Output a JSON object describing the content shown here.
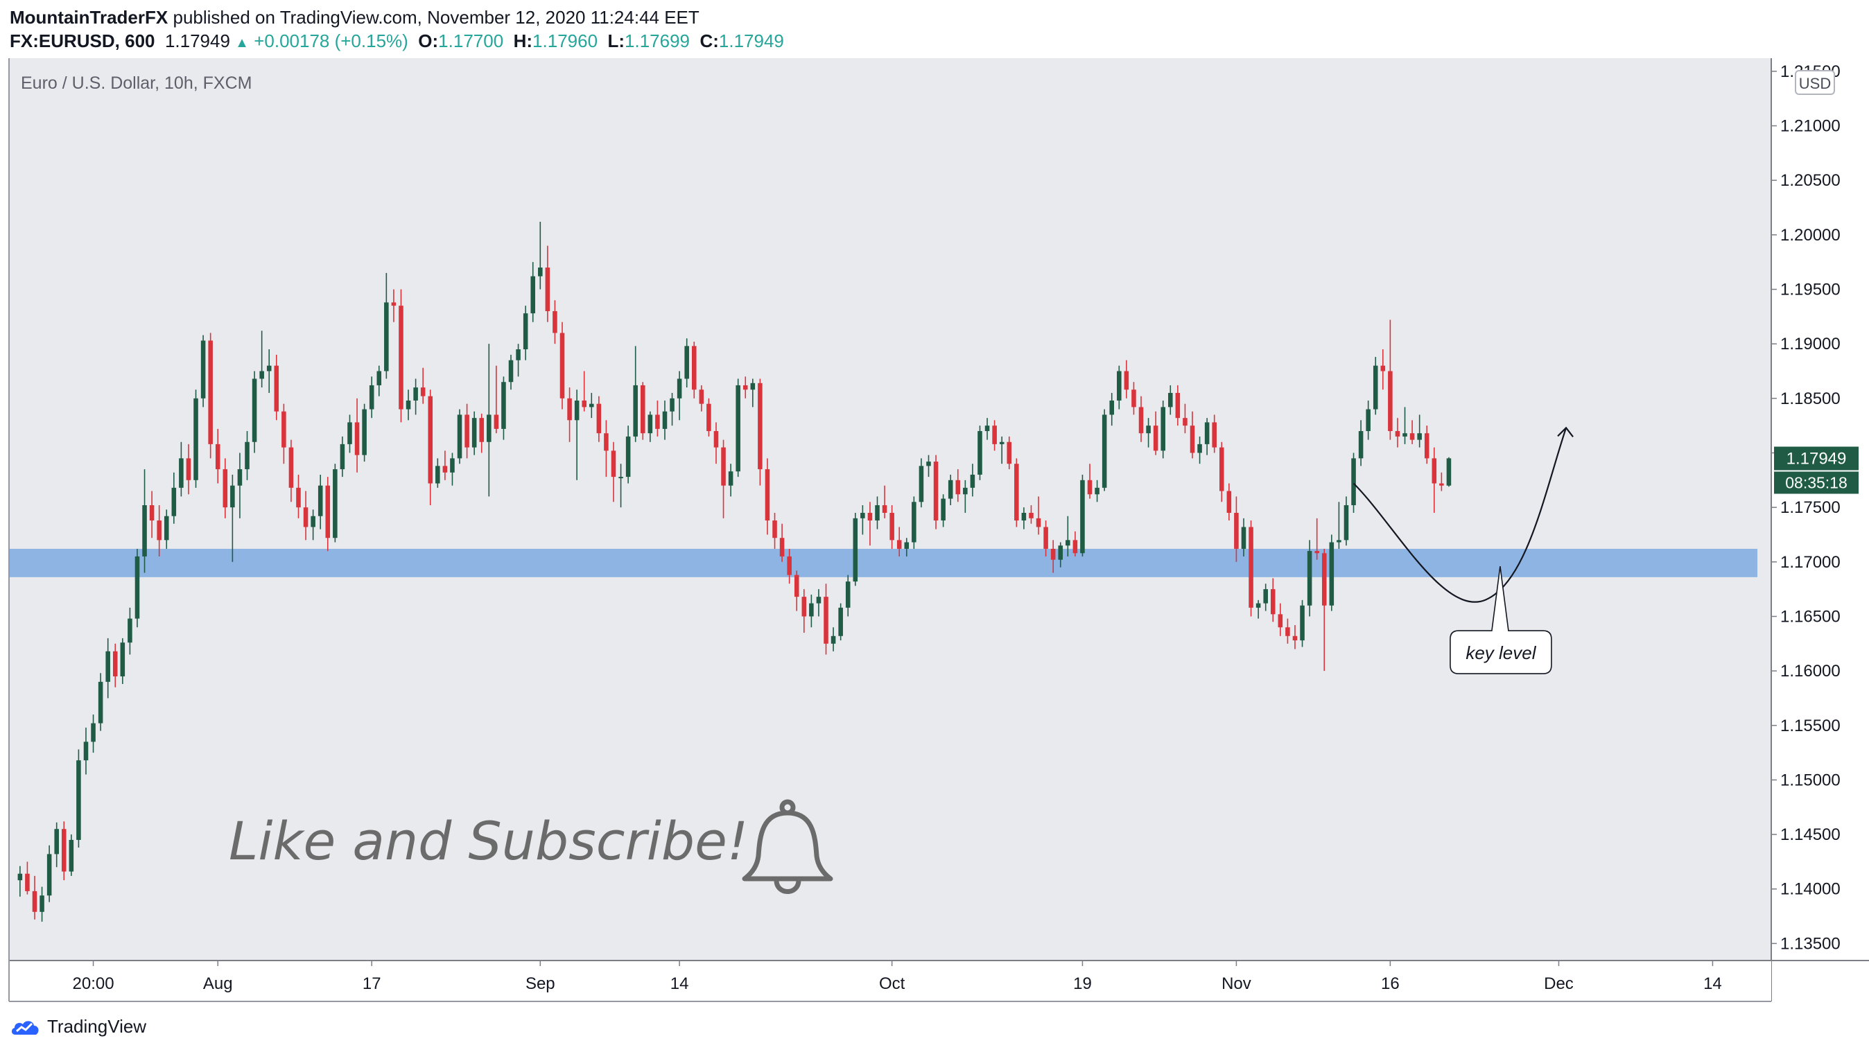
{
  "header": {
    "author": "MountainTraderFX",
    "published_text": "published on TradingView.com, November 12, 2020 11:24:44 EET",
    "symbol": "FX:EURUSD, 600",
    "last": "1.17949",
    "change": "+0.00178 (+0.15%)",
    "open_label": "O:",
    "open": "1.17700",
    "high_label": "H:",
    "high": "1.17960",
    "low_label": "L:",
    "low": "1.17699",
    "close_label": "C:",
    "close": "1.17949"
  },
  "colors": {
    "bull": "#26a69a",
    "bear": "#ef5350",
    "bull_candle": "#1f5b45",
    "bear_candle": "#d9343c",
    "plot_bg": "#e9eaed",
    "zone": "#8db4e2",
    "price_tag": "#1f5b45",
    "text_dark": "#131722",
    "watermark": "#6b6b6b"
  },
  "footer": {
    "brand": "TradingView"
  },
  "chart_data": {
    "type": "candlestick",
    "title": "Euro / U.S. Dollar, 10h, FXCM",
    "currency": "USD",
    "ylim": [
      1.1335,
      1.2162
    ],
    "y_ticks": [
      "1.21500",
      "1.21000",
      "1.20500",
      "1.20000",
      "1.19500",
      "1.19000",
      "1.18500",
      "1.18000",
      "1.17500",
      "1.17000",
      "1.16500",
      "1.16000",
      "1.15500",
      "1.15000",
      "1.14500",
      "1.14000",
      "1.13500"
    ],
    "x_ticks": [
      {
        "label": "20:00",
        "index": 10
      },
      {
        "label": "Aug",
        "index": 27
      },
      {
        "label": "17",
        "index": 48
      },
      {
        "label": "Sep",
        "index": 71
      },
      {
        "label": "14",
        "index": 90
      },
      {
        "label": "Oct",
        "index": 119
      },
      {
        "label": "19",
        "index": 145
      },
      {
        "label": "Nov",
        "index": 166
      },
      {
        "label": "16",
        "index": 187
      },
      {
        "label": "Dec",
        "index": 210
      },
      {
        "label": "14",
        "index": 231
      }
    ],
    "x_index_range": [
      -1.5,
      239
    ],
    "last_price": "1.17949",
    "countdown": "08:35:18",
    "key_zone": [
      1.1686,
      1.1712
    ],
    "annotation": {
      "text": "key level",
      "point": [
        202,
        1.1696
      ]
    },
    "projection": {
      "from": [
        182,
        1.1772
      ],
      "control": [
        200,
        1.1662
      ],
      "to": [
        211,
        1.1823
      ]
    },
    "watermark_text": "Like and Subscribe!",
    "ohlc": [
      [
        1.1408,
        1.1421,
        1.1393,
        1.1414
      ],
      [
        1.1414,
        1.1425,
        1.1395,
        1.1398
      ],
      [
        1.1398,
        1.1412,
        1.1372,
        1.1379
      ],
      [
        1.1379,
        1.1402,
        1.137,
        1.1394
      ],
      [
        1.1394,
        1.144,
        1.1388,
        1.1432
      ],
      [
        1.1432,
        1.1461,
        1.142,
        1.1455
      ],
      [
        1.1455,
        1.1462,
        1.1408,
        1.1416
      ],
      [
        1.1416,
        1.145,
        1.1412,
        1.1445
      ],
      [
        1.1445,
        1.1528,
        1.1438,
        1.1518
      ],
      [
        1.1518,
        1.1548,
        1.1505,
        1.1535
      ],
      [
        1.1535,
        1.156,
        1.1525,
        1.1552
      ],
      [
        1.1552,
        1.1598,
        1.1545,
        1.159
      ],
      [
        1.159,
        1.163,
        1.1575,
        1.1618
      ],
      [
        1.1618,
        1.1625,
        1.1585,
        1.1595
      ],
      [
        1.1595,
        1.163,
        1.1588,
        1.1626
      ],
      [
        1.1626,
        1.1658,
        1.1615,
        1.1648
      ],
      [
        1.1648,
        1.1712,
        1.164,
        1.1705
      ],
      [
        1.1705,
        1.1785,
        1.169,
        1.1752
      ],
      [
        1.1752,
        1.1765,
        1.1722,
        1.1738
      ],
      [
        1.1738,
        1.1752,
        1.1705,
        1.172
      ],
      [
        1.172,
        1.1748,
        1.1712,
        1.1742
      ],
      [
        1.1742,
        1.1782,
        1.1735,
        1.1768
      ],
      [
        1.1768,
        1.181,
        1.176,
        1.1795
      ],
      [
        1.1795,
        1.1808,
        1.1762,
        1.1775
      ],
      [
        1.1775,
        1.1858,
        1.1768,
        1.185
      ],
      [
        1.185,
        1.1908,
        1.1842,
        1.1903
      ],
      [
        1.1903,
        1.191,
        1.1795,
        1.1808
      ],
      [
        1.1808,
        1.1822,
        1.1772,
        1.1785
      ],
      [
        1.1785,
        1.1795,
        1.174,
        1.175
      ],
      [
        1.175,
        1.178,
        1.17,
        1.177
      ],
      [
        1.177,
        1.18,
        1.174,
        1.1785
      ],
      [
        1.1785,
        1.182,
        1.1775,
        1.181
      ],
      [
        1.181,
        1.1875,
        1.18,
        1.1868
      ],
      [
        1.1868,
        1.1912,
        1.186,
        1.1875
      ],
      [
        1.1875,
        1.1895,
        1.1855,
        1.188
      ],
      [
        1.188,
        1.189,
        1.183,
        1.1838
      ],
      [
        1.1838,
        1.1845,
        1.179,
        1.1805
      ],
      [
        1.1805,
        1.1812,
        1.1755,
        1.1768
      ],
      [
        1.1768,
        1.178,
        1.174,
        1.175
      ],
      [
        1.175,
        1.1765,
        1.172,
        1.1732
      ],
      [
        1.1732,
        1.1748,
        1.172,
        1.1742
      ],
      [
        1.1742,
        1.178,
        1.173,
        1.177
      ],
      [
        1.177,
        1.1778,
        1.171,
        1.1722
      ],
      [
        1.1722,
        1.179,
        1.1718,
        1.1785
      ],
      [
        1.1785,
        1.1815,
        1.1778,
        1.1808
      ],
      [
        1.1808,
        1.1835,
        1.18,
        1.1828
      ],
      [
        1.1828,
        1.185,
        1.1782,
        1.1798
      ],
      [
        1.1798,
        1.1845,
        1.1792,
        1.184
      ],
      [
        1.184,
        1.187,
        1.1832,
        1.1862
      ],
      [
        1.1862,
        1.188,
        1.1852,
        1.1875
      ],
      [
        1.1875,
        1.1965,
        1.1868,
        1.1938
      ],
      [
        1.1938,
        1.195,
        1.192,
        1.1935
      ],
      [
        1.1935,
        1.195,
        1.1828,
        1.184
      ],
      [
        1.184,
        1.1858,
        1.183,
        1.1848
      ],
      [
        1.1848,
        1.1868,
        1.1835,
        1.186
      ],
      [
        1.186,
        1.1878,
        1.1845,
        1.1852
      ],
      [
        1.1852,
        1.1858,
        1.1752,
        1.1772
      ],
      [
        1.1772,
        1.1795,
        1.1768,
        1.1788
      ],
      [
        1.1788,
        1.1802,
        1.1775,
        1.1782
      ],
      [
        1.1782,
        1.18,
        1.177,
        1.1795
      ],
      [
        1.1795,
        1.184,
        1.179,
        1.1835
      ],
      [
        1.1835,
        1.1845,
        1.1795,
        1.1805
      ],
      [
        1.1805,
        1.1838,
        1.1798,
        1.1832
      ],
      [
        1.1832,
        1.1836,
        1.18,
        1.181
      ],
      [
        1.181,
        1.19,
        1.176,
        1.1835
      ],
      [
        1.1835,
        1.188,
        1.1818,
        1.1822
      ],
      [
        1.1822,
        1.187,
        1.1812,
        1.1865
      ],
      [
        1.1865,
        1.189,
        1.1858,
        1.1885
      ],
      [
        1.1885,
        1.19,
        1.187,
        1.1895
      ],
      [
        1.1895,
        1.1935,
        1.1885,
        1.1928
      ],
      [
        1.1928,
        1.1975,
        1.192,
        1.1962
      ],
      [
        1.1962,
        1.2012,
        1.195,
        1.197
      ],
      [
        1.197,
        1.199,
        1.192,
        1.193
      ],
      [
        1.193,
        1.194,
        1.19,
        1.191
      ],
      [
        1.191,
        1.192,
        1.184,
        1.185
      ],
      [
        1.185,
        1.186,
        1.181,
        1.183
      ],
      [
        1.183,
        1.1858,
        1.1775,
        1.1848
      ],
      [
        1.1848,
        1.1875,
        1.1838,
        1.1842
      ],
      [
        1.1842,
        1.1855,
        1.1832,
        1.1845
      ],
      [
        1.1845,
        1.1852,
        1.181,
        1.1818
      ],
      [
        1.1818,
        1.183,
        1.1778,
        1.1802
      ],
      [
        1.1802,
        1.181,
        1.1755,
        1.1778
      ],
      [
        1.1778,
        1.179,
        1.175,
        1.1778
      ],
      [
        1.1778,
        1.1825,
        1.1772,
        1.1815
      ],
      [
        1.1815,
        1.1898,
        1.181,
        1.1862
      ],
      [
        1.1862,
        1.1865,
        1.1812,
        1.1818
      ],
      [
        1.1818,
        1.1838,
        1.181,
        1.1835
      ],
      [
        1.1835,
        1.1848,
        1.1815,
        1.1822
      ],
      [
        1.1822,
        1.1848,
        1.1812,
        1.1838
      ],
      [
        1.1838,
        1.1855,
        1.1825,
        1.185
      ],
      [
        1.185,
        1.1875,
        1.183,
        1.1868
      ],
      [
        1.1868,
        1.1905,
        1.186,
        1.1898
      ],
      [
        1.1898,
        1.1902,
        1.185,
        1.1858
      ],
      [
        1.1858,
        1.1862,
        1.1838,
        1.1845
      ],
      [
        1.1845,
        1.185,
        1.1815,
        1.182
      ],
      [
        1.182,
        1.1828,
        1.179,
        1.1805
      ],
      [
        1.1805,
        1.1812,
        1.174,
        1.177
      ],
      [
        1.177,
        1.179,
        1.176,
        1.1783
      ],
      [
        1.1783,
        1.1868,
        1.1778,
        1.1862
      ],
      [
        1.1862,
        1.187,
        1.185,
        1.1858
      ],
      [
        1.1858,
        1.1868,
        1.1842,
        1.1864
      ],
      [
        1.1864,
        1.1868,
        1.177,
        1.1785
      ],
      [
        1.1785,
        1.1795,
        1.1725,
        1.1738
      ],
      [
        1.1738,
        1.1745,
        1.1712,
        1.1722
      ],
      [
        1.1722,
        1.1735,
        1.17,
        1.1705
      ],
      [
        1.1705,
        1.1712,
        1.168,
        1.1688
      ],
      [
        1.1688,
        1.1692,
        1.1655,
        1.1668
      ],
      [
        1.1668,
        1.1675,
        1.1635,
        1.165
      ],
      [
        1.165,
        1.167,
        1.164,
        1.1662
      ],
      [
        1.1662,
        1.1675,
        1.165,
        1.1668
      ],
      [
        1.1668,
        1.168,
        1.1615,
        1.1625
      ],
      [
        1.1625,
        1.164,
        1.1618,
        1.1632
      ],
      [
        1.1632,
        1.1662,
        1.1628,
        1.1658
      ],
      [
        1.1658,
        1.1688,
        1.165,
        1.1682
      ],
      [
        1.1682,
        1.1745,
        1.1678,
        1.174
      ],
      [
        1.174,
        1.1752,
        1.1725,
        1.1745
      ],
      [
        1.1745,
        1.1755,
        1.1715,
        1.1738
      ],
      [
        1.1738,
        1.176,
        1.173,
        1.1752
      ],
      [
        1.1752,
        1.177,
        1.174,
        1.1745
      ],
      [
        1.1745,
        1.1752,
        1.1712,
        1.172
      ],
      [
        1.172,
        1.1732,
        1.1705,
        1.1712
      ],
      [
        1.1712,
        1.1722,
        1.1705,
        1.1718
      ],
      [
        1.1718,
        1.176,
        1.1712,
        1.1755
      ],
      [
        1.1755,
        1.1795,
        1.175,
        1.1788
      ],
      [
        1.1788,
        1.1798,
        1.1778,
        1.1792
      ],
      [
        1.1792,
        1.1798,
        1.173,
        1.1738
      ],
      [
        1.1738,
        1.1762,
        1.1732,
        1.1758
      ],
      [
        1.1758,
        1.178,
        1.1752,
        1.1775
      ],
      [
        1.1775,
        1.1785,
        1.1755,
        1.1762
      ],
      [
        1.1762,
        1.1775,
        1.1745,
        1.1768
      ],
      [
        1.1768,
        1.179,
        1.176,
        1.178
      ],
      [
        1.178,
        1.1825,
        1.1775,
        1.182
      ],
      [
        1.182,
        1.1832,
        1.1812,
        1.1825
      ],
      [
        1.1825,
        1.183,
        1.1802,
        1.1808
      ],
      [
        1.1808,
        1.1815,
        1.179,
        1.181
      ],
      [
        1.181,
        1.1815,
        1.1785,
        1.179
      ],
      [
        1.179,
        1.1795,
        1.1732,
        1.1738
      ],
      [
        1.1738,
        1.175,
        1.173,
        1.1745
      ],
      [
        1.1745,
        1.1752,
        1.1735,
        1.174
      ],
      [
        1.174,
        1.176,
        1.1725,
        1.1732
      ],
      [
        1.1732,
        1.1738,
        1.1705,
        1.1712
      ],
      [
        1.1712,
        1.172,
        1.169,
        1.1702
      ],
      [
        1.1702,
        1.1718,
        1.1695,
        1.1715
      ],
      [
        1.1715,
        1.1742,
        1.1705,
        1.172
      ],
      [
        1.172,
        1.1728,
        1.1705,
        1.1708
      ],
      [
        1.1708,
        1.178,
        1.1705,
        1.1775
      ],
      [
        1.1775,
        1.179,
        1.1758,
        1.1762
      ],
      [
        1.1762,
        1.1775,
        1.1755,
        1.1768
      ],
      [
        1.1768,
        1.184,
        1.1765,
        1.1835
      ],
      [
        1.1835,
        1.1855,
        1.1825,
        1.1848
      ],
      [
        1.1848,
        1.188,
        1.184,
        1.1875
      ],
      [
        1.1875,
        1.1885,
        1.185,
        1.1858
      ],
      [
        1.1858,
        1.1865,
        1.1835,
        1.1842
      ],
      [
        1.1842,
        1.1852,
        1.181,
        1.1818
      ],
      [
        1.1818,
        1.1832,
        1.1805,
        1.1825
      ],
      [
        1.1825,
        1.1838,
        1.1798,
        1.1802
      ],
      [
        1.1802,
        1.1848,
        1.1795,
        1.1842
      ],
      [
        1.1842,
        1.1862,
        1.1835,
        1.1855
      ],
      [
        1.1855,
        1.1862,
        1.1825,
        1.1832
      ],
      [
        1.1832,
        1.1845,
        1.1818,
        1.1825
      ],
      [
        1.1825,
        1.1838,
        1.1795,
        1.18
      ],
      [
        1.18,
        1.1815,
        1.179,
        1.1808
      ],
      [
        1.1808,
        1.1832,
        1.1798,
        1.1828
      ],
      [
        1.1828,
        1.1835,
        1.18,
        1.1805
      ],
      [
        1.1805,
        1.181,
        1.1755,
        1.1765
      ],
      [
        1.1765,
        1.1772,
        1.1738,
        1.1745
      ],
      [
        1.1745,
        1.176,
        1.17,
        1.1712
      ],
      [
        1.1712,
        1.174,
        1.1705,
        1.1732
      ],
      [
        1.1732,
        1.1738,
        1.165,
        1.1658
      ],
      [
        1.1658,
        1.1665,
        1.1648,
        1.1662
      ],
      [
        1.1662,
        1.168,
        1.1655,
        1.1675
      ],
      [
        1.1675,
        1.1685,
        1.1645,
        1.1652
      ],
      [
        1.1652,
        1.1662,
        1.1632,
        1.164
      ],
      [
        1.164,
        1.1648,
        1.1625,
        1.1632
      ],
      [
        1.1632,
        1.1642,
        1.162,
        1.1628
      ],
      [
        1.1628,
        1.1665,
        1.1622,
        1.166
      ],
      [
        1.166,
        1.172,
        1.165,
        1.171
      ],
      [
        1.171,
        1.174,
        1.1702,
        1.1708
      ],
      [
        1.1708,
        1.1712,
        1.16,
        1.166
      ],
      [
        1.166,
        1.1725,
        1.1655,
        1.1718
      ],
      [
        1.1718,
        1.1755,
        1.1712,
        1.172
      ],
      [
        1.172,
        1.176,
        1.1715,
        1.1752
      ],
      [
        1.1752,
        1.18,
        1.1745,
        1.1795
      ],
      [
        1.1795,
        1.183,
        1.1788,
        1.182
      ],
      [
        1.182,
        1.1848,
        1.1812,
        1.184
      ],
      [
        1.184,
        1.1888,
        1.1835,
        1.188
      ],
      [
        1.188,
        1.1895,
        1.1858,
        1.1875
      ],
      [
        1.1875,
        1.1922,
        1.1812,
        1.182
      ],
      [
        1.182,
        1.1832,
        1.1805,
        1.1815
      ],
      [
        1.1815,
        1.1842,
        1.1808,
        1.1818
      ],
      [
        1.1818,
        1.183,
        1.1808,
        1.1812
      ],
      [
        1.1812,
        1.1835,
        1.1805,
        1.1818
      ],
      [
        1.1818,
        1.1825,
        1.179,
        1.1795
      ],
      [
        1.1795,
        1.1805,
        1.1745,
        1.1772
      ],
      [
        1.1772,
        1.1782,
        1.1765,
        1.177
      ],
      [
        1.177,
        1.1796,
        1.1769,
        1.1795
      ]
    ]
  }
}
